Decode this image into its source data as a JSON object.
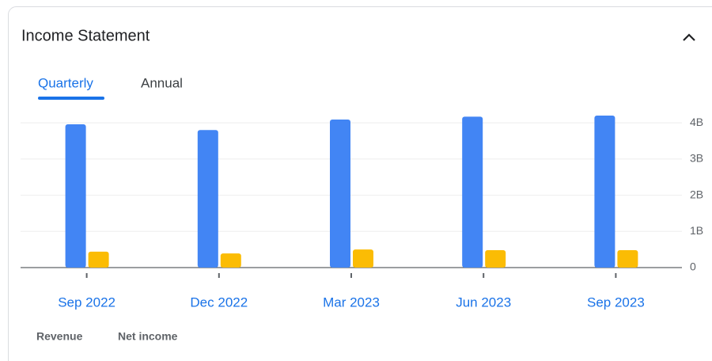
{
  "header": {
    "title": "Income Statement"
  },
  "tabs": [
    "Quarterly",
    "Annual"
  ],
  "chart_data": {
    "type": "bar",
    "categories": [
      "Sep 2022",
      "Dec 2022",
      "Mar 2023",
      "Jun 2023",
      "Sep 2023"
    ],
    "series": [
      {
        "name": "Revenue",
        "color": "#4285f4",
        "values": [
          3.96,
          3.8,
          4.09,
          4.17,
          4.2
        ]
      },
      {
        "name": "Net income",
        "color": "#fbbc04",
        "values": [
          0.44,
          0.39,
          0.5,
          0.48,
          0.48
        ]
      }
    ],
    "ylim": [
      0,
      4.2
    ],
    "yticks": [
      {
        "value": 0,
        "label": "0"
      },
      {
        "value": 1,
        "label": "1B"
      },
      {
        "value": 2,
        "label": "2B"
      },
      {
        "value": 3,
        "label": "3B"
      },
      {
        "value": 4,
        "label": "4B"
      }
    ],
    "grid": true
  }
}
